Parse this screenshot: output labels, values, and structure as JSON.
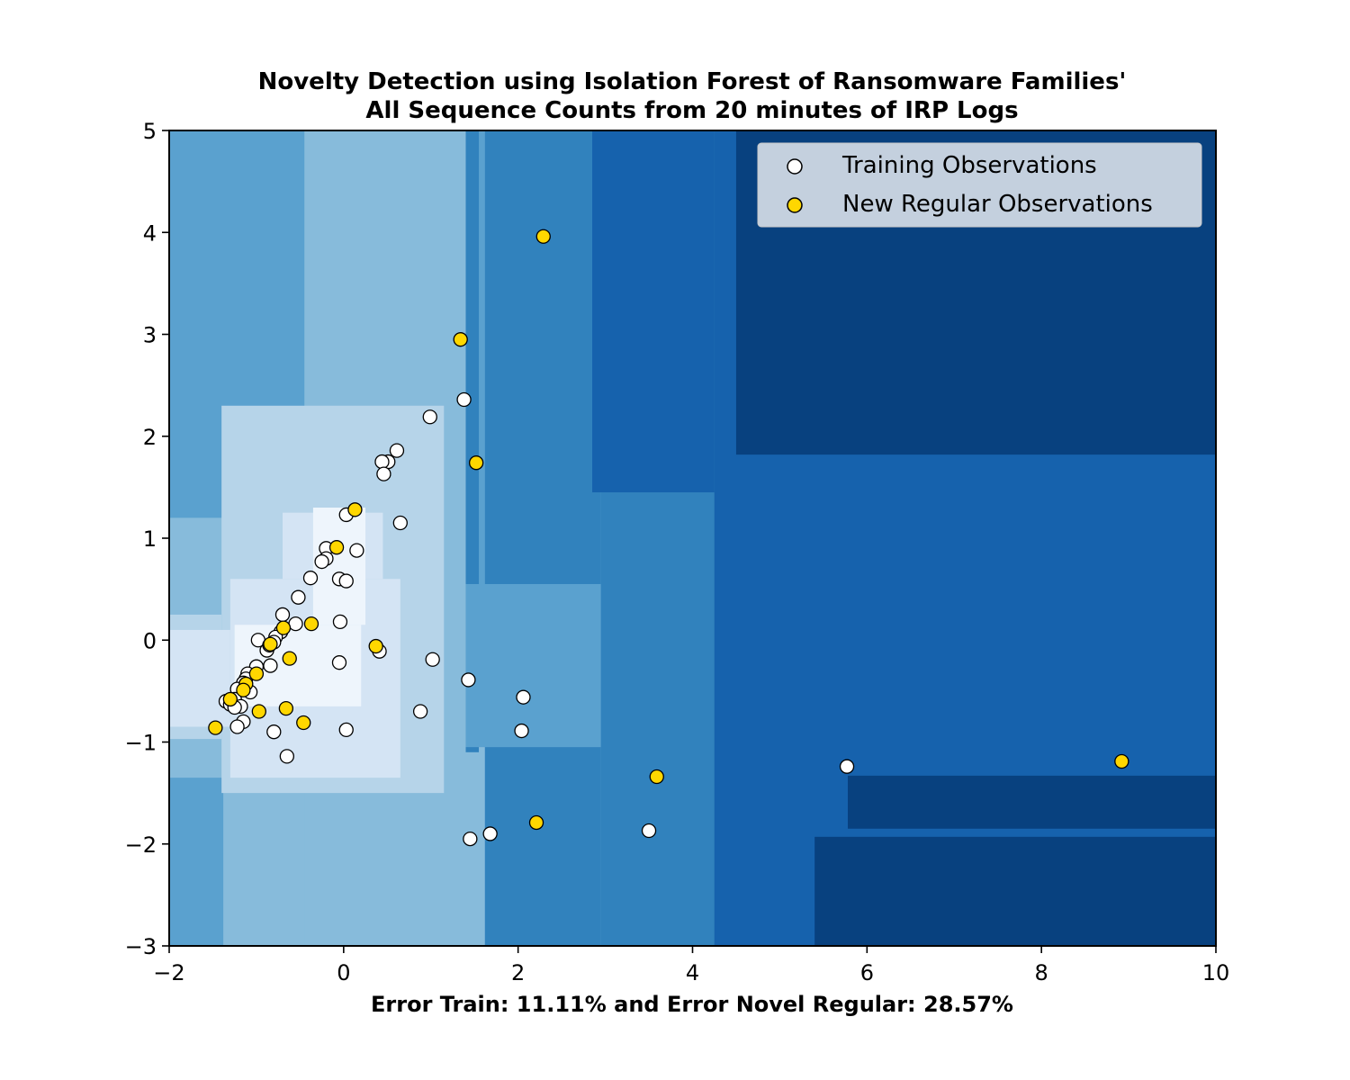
{
  "chart_data": {
    "type": "scatter",
    "title": [
      "Novelty Detection using Isolation Forest of Ransomware Families'",
      "All Sequence Counts from 20 minutes of IRP Logs"
    ],
    "xlabel": "Error Train: 11.11% and Error Novel Regular: 28.57%",
    "ylabel": "",
    "xlim": [
      -2,
      10
    ],
    "ylim": [
      -3,
      5
    ],
    "xticks": [
      -2,
      0,
      2,
      4,
      6,
      8,
      10
    ],
    "yticks": [
      -3,
      -2,
      -1,
      0,
      1,
      2,
      3,
      4,
      5
    ],
    "xtick_labels": [
      "−2",
      "0",
      "2",
      "4",
      "6",
      "8",
      "10"
    ],
    "ytick_labels": [
      "−3",
      "−2",
      "−1",
      "0",
      "1",
      "2",
      "3",
      "4",
      "5"
    ],
    "legend_position": "top-right",
    "colors": {
      "level1": "#eef5fc",
      "level2": "#d4e4f4",
      "level3": "#b6d4e9",
      "level4": "#87bbdb",
      "level5": "#5aa1cf",
      "level6": "#3182bd",
      "level7": "#1662ad",
      "level8": "#08417f",
      "training": "#ffffff",
      "new_regular": "#ffd700",
      "marker_edge": "#000000"
    },
    "background_regions": [
      {
        "level": 5,
        "x": [
          -2,
          10
        ],
        "y": [
          -3,
          5
        ]
      },
      {
        "level": 4,
        "x": [
          -1.38,
          1.62
        ],
        "y": [
          -3,
          -0.3
        ]
      },
      {
        "level": 4,
        "x": [
          -0.45,
          1.4
        ],
        "y": [
          -3,
          5
        ]
      },
      {
        "level": 6,
        "x": [
          1.4,
          1.55
        ],
        "y": [
          -1.1,
          5
        ]
      },
      {
        "level": 6,
        "x": [
          1.62,
          2.95
        ],
        "y": [
          -3,
          5
        ]
      },
      {
        "level": 4,
        "x": [
          -2,
          -0.45
        ],
        "y": [
          -1.35,
          1.2
        ]
      },
      {
        "level": 4,
        "x": [
          -1.3,
          -0.45
        ],
        "y": [
          -0.6,
          1.95
        ]
      },
      {
        "level": 5,
        "x": [
          1.4,
          2.95
        ],
        "y": [
          -1.05,
          0.55
        ]
      },
      {
        "level": 6,
        "x": [
          2.95,
          4.45
        ],
        "y": [
          -3,
          5
        ]
      },
      {
        "level": 7,
        "x": [
          2.85,
          4.25
        ],
        "y": [
          1.45,
          5
        ]
      },
      {
        "level": 7,
        "x": [
          4.25,
          10
        ],
        "y": [
          -3,
          5
        ]
      },
      {
        "level": 8,
        "x": [
          4.5,
          10
        ],
        "y": [
          1.82,
          5
        ]
      },
      {
        "level": 8,
        "x": [
          5.78,
          10
        ],
        "y": [
          -1.85,
          -1.33
        ]
      },
      {
        "level": 8,
        "x": [
          5.4,
          10
        ],
        "y": [
          -3,
          -1.93
        ]
      },
      {
        "level": 3,
        "x": [
          -1.4,
          1.15
        ],
        "y": [
          -1.5,
          2.3
        ]
      },
      {
        "level": 3,
        "x": [
          -2,
          -1.4
        ],
        "y": [
          -0.97,
          0.25
        ]
      },
      {
        "level": 2,
        "x": [
          -1.3,
          0.65
        ],
        "y": [
          -1.35,
          0.6
        ]
      },
      {
        "level": 2,
        "x": [
          -0.7,
          0.45
        ],
        "y": [
          0.6,
          1.25
        ]
      },
      {
        "level": 2,
        "x": [
          -2,
          -1.3
        ],
        "y": [
          -0.85,
          0.1
        ]
      },
      {
        "level": 1,
        "x": [
          -1.25,
          0.2
        ],
        "y": [
          -0.65,
          0.15
        ]
      },
      {
        "level": 1,
        "x": [
          -0.35,
          0.25
        ],
        "y": [
          0.15,
          1.3
        ]
      }
    ],
    "series": [
      {
        "name": "Training Observations",
        "color": "#ffffff",
        "points": [
          [
            1.38,
            2.36
          ],
          [
            0.99,
            2.19
          ],
          [
            0.61,
            1.86
          ],
          [
            0.51,
            1.75
          ],
          [
            0.44,
            1.75
          ],
          [
            0.46,
            1.63
          ],
          [
            0.03,
            1.23
          ],
          [
            0.65,
            1.15
          ],
          [
            -0.2,
            0.9
          ],
          [
            -0.2,
            0.8
          ],
          [
            -0.25,
            0.77
          ],
          [
            0.15,
            0.88
          ],
          [
            -0.38,
            0.61
          ],
          [
            -0.05,
            0.6
          ],
          [
            0.03,
            0.58
          ],
          [
            -0.52,
            0.42
          ],
          [
            -0.04,
            0.18
          ],
          [
            -0.55,
            0.16
          ],
          [
            -0.7,
            0.25
          ],
          [
            -0.72,
            0.08
          ],
          [
            -0.78,
            0.03
          ],
          [
            -0.8,
            -0.02
          ],
          [
            -0.98,
            0.0
          ],
          [
            -0.88,
            -0.1
          ],
          [
            -0.85,
            -0.05
          ],
          [
            -0.84,
            -0.25
          ],
          [
            -1.0,
            -0.26
          ],
          [
            -1.1,
            -0.33
          ],
          [
            -1.12,
            -0.38
          ],
          [
            -1.15,
            -0.42
          ],
          [
            -1.07,
            -0.51
          ],
          [
            -1.22,
            -0.48
          ],
          [
            -1.25,
            -0.58
          ],
          [
            -1.35,
            -0.6
          ],
          [
            -1.3,
            -0.63
          ],
          [
            -1.18,
            -0.65
          ],
          [
            -1.25,
            -0.66
          ],
          [
            -1.15,
            -0.8
          ],
          [
            -1.22,
            -0.85
          ],
          [
            -0.8,
            -0.9
          ],
          [
            -0.65,
            -1.14
          ],
          [
            0.03,
            -0.88
          ],
          [
            -0.05,
            -0.22
          ],
          [
            0.41,
            -0.11
          ],
          [
            1.02,
            -0.19
          ],
          [
            1.43,
            -0.39
          ],
          [
            0.88,
            -0.7
          ],
          [
            2.06,
            -0.56
          ],
          [
            2.04,
            -0.89
          ],
          [
            1.45,
            -1.95
          ],
          [
            1.68,
            -1.9
          ],
          [
            3.5,
            -1.87
          ],
          [
            5.77,
            -1.24
          ]
        ]
      },
      {
        "name": "New Regular Observations",
        "color": "#ffd700",
        "points": [
          [
            2.29,
            3.96
          ],
          [
            1.34,
            2.95
          ],
          [
            1.52,
            1.74
          ],
          [
            0.13,
            1.28
          ],
          [
            -0.08,
            0.91
          ],
          [
            -0.69,
            0.12
          ],
          [
            -0.37,
            0.16
          ],
          [
            -0.84,
            -0.04
          ],
          [
            -0.62,
            -0.18
          ],
          [
            0.37,
            -0.06
          ],
          [
            -1.0,
            -0.33
          ],
          [
            -1.12,
            -0.43
          ],
          [
            -1.15,
            -0.49
          ],
          [
            -1.3,
            -0.58
          ],
          [
            -0.97,
            -0.7
          ],
          [
            -0.66,
            -0.67
          ],
          [
            -0.46,
            -0.81
          ],
          [
            -1.47,
            -0.86
          ],
          [
            3.59,
            -1.34
          ],
          [
            2.21,
            -1.79
          ],
          [
            8.92,
            -1.19
          ]
        ]
      }
    ]
  }
}
